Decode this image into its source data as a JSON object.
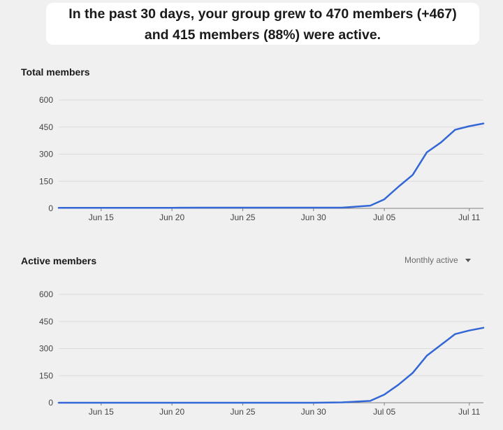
{
  "summary": {
    "line1": "In the past 30 days, your group grew to 470 members (+467)",
    "line2": "and 415 members (88%) were active."
  },
  "colors": {
    "line": "#3367d6",
    "grid": "#dadada",
    "baseline": "#7f7f7f",
    "background": "#f0f0f0"
  },
  "total_members": {
    "title": "Total members"
  },
  "active_members": {
    "title": "Active members",
    "filter_label": "Monthly active",
    "filter_icon": "caret-down-icon"
  },
  "chart_data": [
    {
      "type": "line",
      "title": "Total members",
      "x_tick_labels": [
        "Jun 15",
        "Jun 20",
        "Jun 25",
        "Jun 30",
        "Jul 05",
        "Jul 11"
      ],
      "x_tick_days": [
        15,
        20,
        25,
        30,
        35,
        41
      ],
      "y_tick_labels": [
        "0",
        "150",
        "300",
        "450",
        "600"
      ],
      "ylim": [
        0,
        600
      ],
      "xlim": [
        12,
        42
      ],
      "grid": true,
      "series": [
        {
          "x": [
            12,
            14,
            16,
            18,
            20,
            22,
            24,
            26,
            28,
            30,
            32,
            34,
            35,
            36,
            37,
            38,
            39,
            40,
            41,
            42
          ],
          "values": [
            3,
            3,
            3,
            3,
            3,
            4,
            4,
            4,
            4,
            4,
            4,
            15,
            50,
            120,
            185,
            310,
            365,
            435,
            455,
            470
          ]
        }
      ]
    },
    {
      "type": "line",
      "title": "Active members",
      "x_tick_labels": [
        "Jun 15",
        "Jun 20",
        "Jun 25",
        "Jun 30",
        "Jul 05",
        "Jul 11"
      ],
      "x_tick_days": [
        15,
        20,
        25,
        30,
        35,
        41
      ],
      "y_tick_labels": [
        "0",
        "150",
        "300",
        "450",
        "600"
      ],
      "ylim": [
        0,
        600
      ],
      "xlim": [
        12,
        42
      ],
      "grid": true,
      "series": [
        {
          "x": [
            12,
            14,
            16,
            18,
            20,
            22,
            24,
            26,
            28,
            30,
            32,
            34,
            35,
            36,
            37,
            38,
            39,
            40,
            41,
            42
          ],
          "values": [
            0,
            0,
            0,
            0,
            0,
            0,
            0,
            0,
            0,
            0,
            2,
            10,
            45,
            100,
            165,
            260,
            320,
            380,
            400,
            415
          ]
        }
      ]
    }
  ]
}
